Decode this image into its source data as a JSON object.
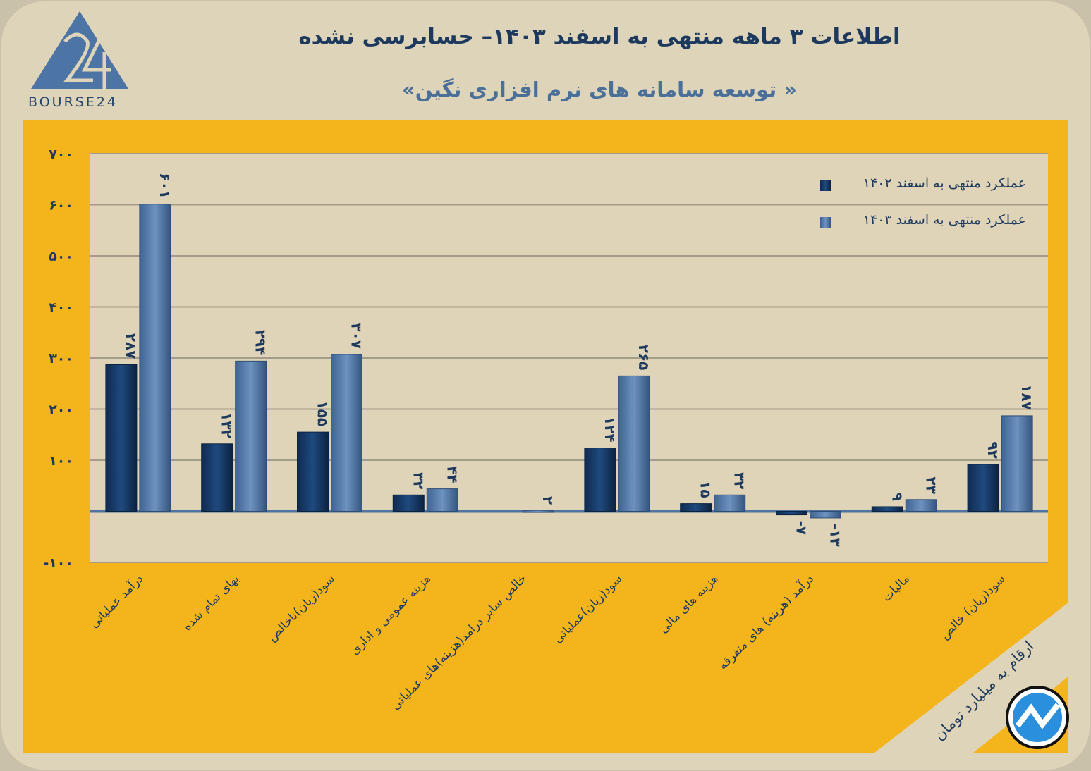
{
  "header": {
    "title": "اطلاعات ۳ ماهه منتهی به اسفند ۱۴۰۳– حسابرسی نشده",
    "subtitle": "« توسعه سامانه های نرم افزاری نگین»",
    "logo_text": "BOURSE24",
    "unit_note": "ارقام به میلیارد تومان"
  },
  "colors": {
    "panel": "#f4b41c",
    "plot": "#dfd4b8",
    "series1": "#173a66",
    "series2": "#5a7fae",
    "axis": "#4f74a0"
  },
  "chart_data": {
    "type": "bar",
    "title": "اطلاعات ۳ ماهه منتهی به اسفند ۱۴۰۳",
    "categories": [
      "درآمد عملیاتی",
      "بهای تمام شده",
      "سود(زیان)ناخالص",
      "هزینه عمومی و اداری",
      "خالص سایر درامد(هزینه)های عملیاتی",
      "سود(زیان)عملیاتی",
      "هزینه های مالی",
      "درآمد (هزینه) های متفرقه",
      "مالیات",
      "سود(زیان) خالص"
    ],
    "series": [
      {
        "name": "عملکرد منتهی به اسفند ۱۴۰۲",
        "values": [
          287,
          132,
          155,
          32,
          null,
          124,
          15,
          -7,
          9,
          92
        ]
      },
      {
        "name": "عملکرد منتهی به اسفند ۱۴۰۳",
        "values": [
          601,
          294,
          307,
          44,
          2,
          265,
          32,
          -13,
          23,
          187
        ]
      }
    ],
    "ylim": [
      -100,
      700
    ],
    "yticks": [
      -100,
      0,
      100,
      200,
      300,
      400,
      500,
      600,
      700
    ],
    "ytick_labels": [
      "-۱۰۰",
      "",
      "۱۰۰",
      "۲۰۰",
      "۳۰۰",
      "۴۰۰",
      "۵۰۰",
      "۶۰۰",
      "۷۰۰"
    ],
    "grid": true,
    "legend": "top-right"
  }
}
